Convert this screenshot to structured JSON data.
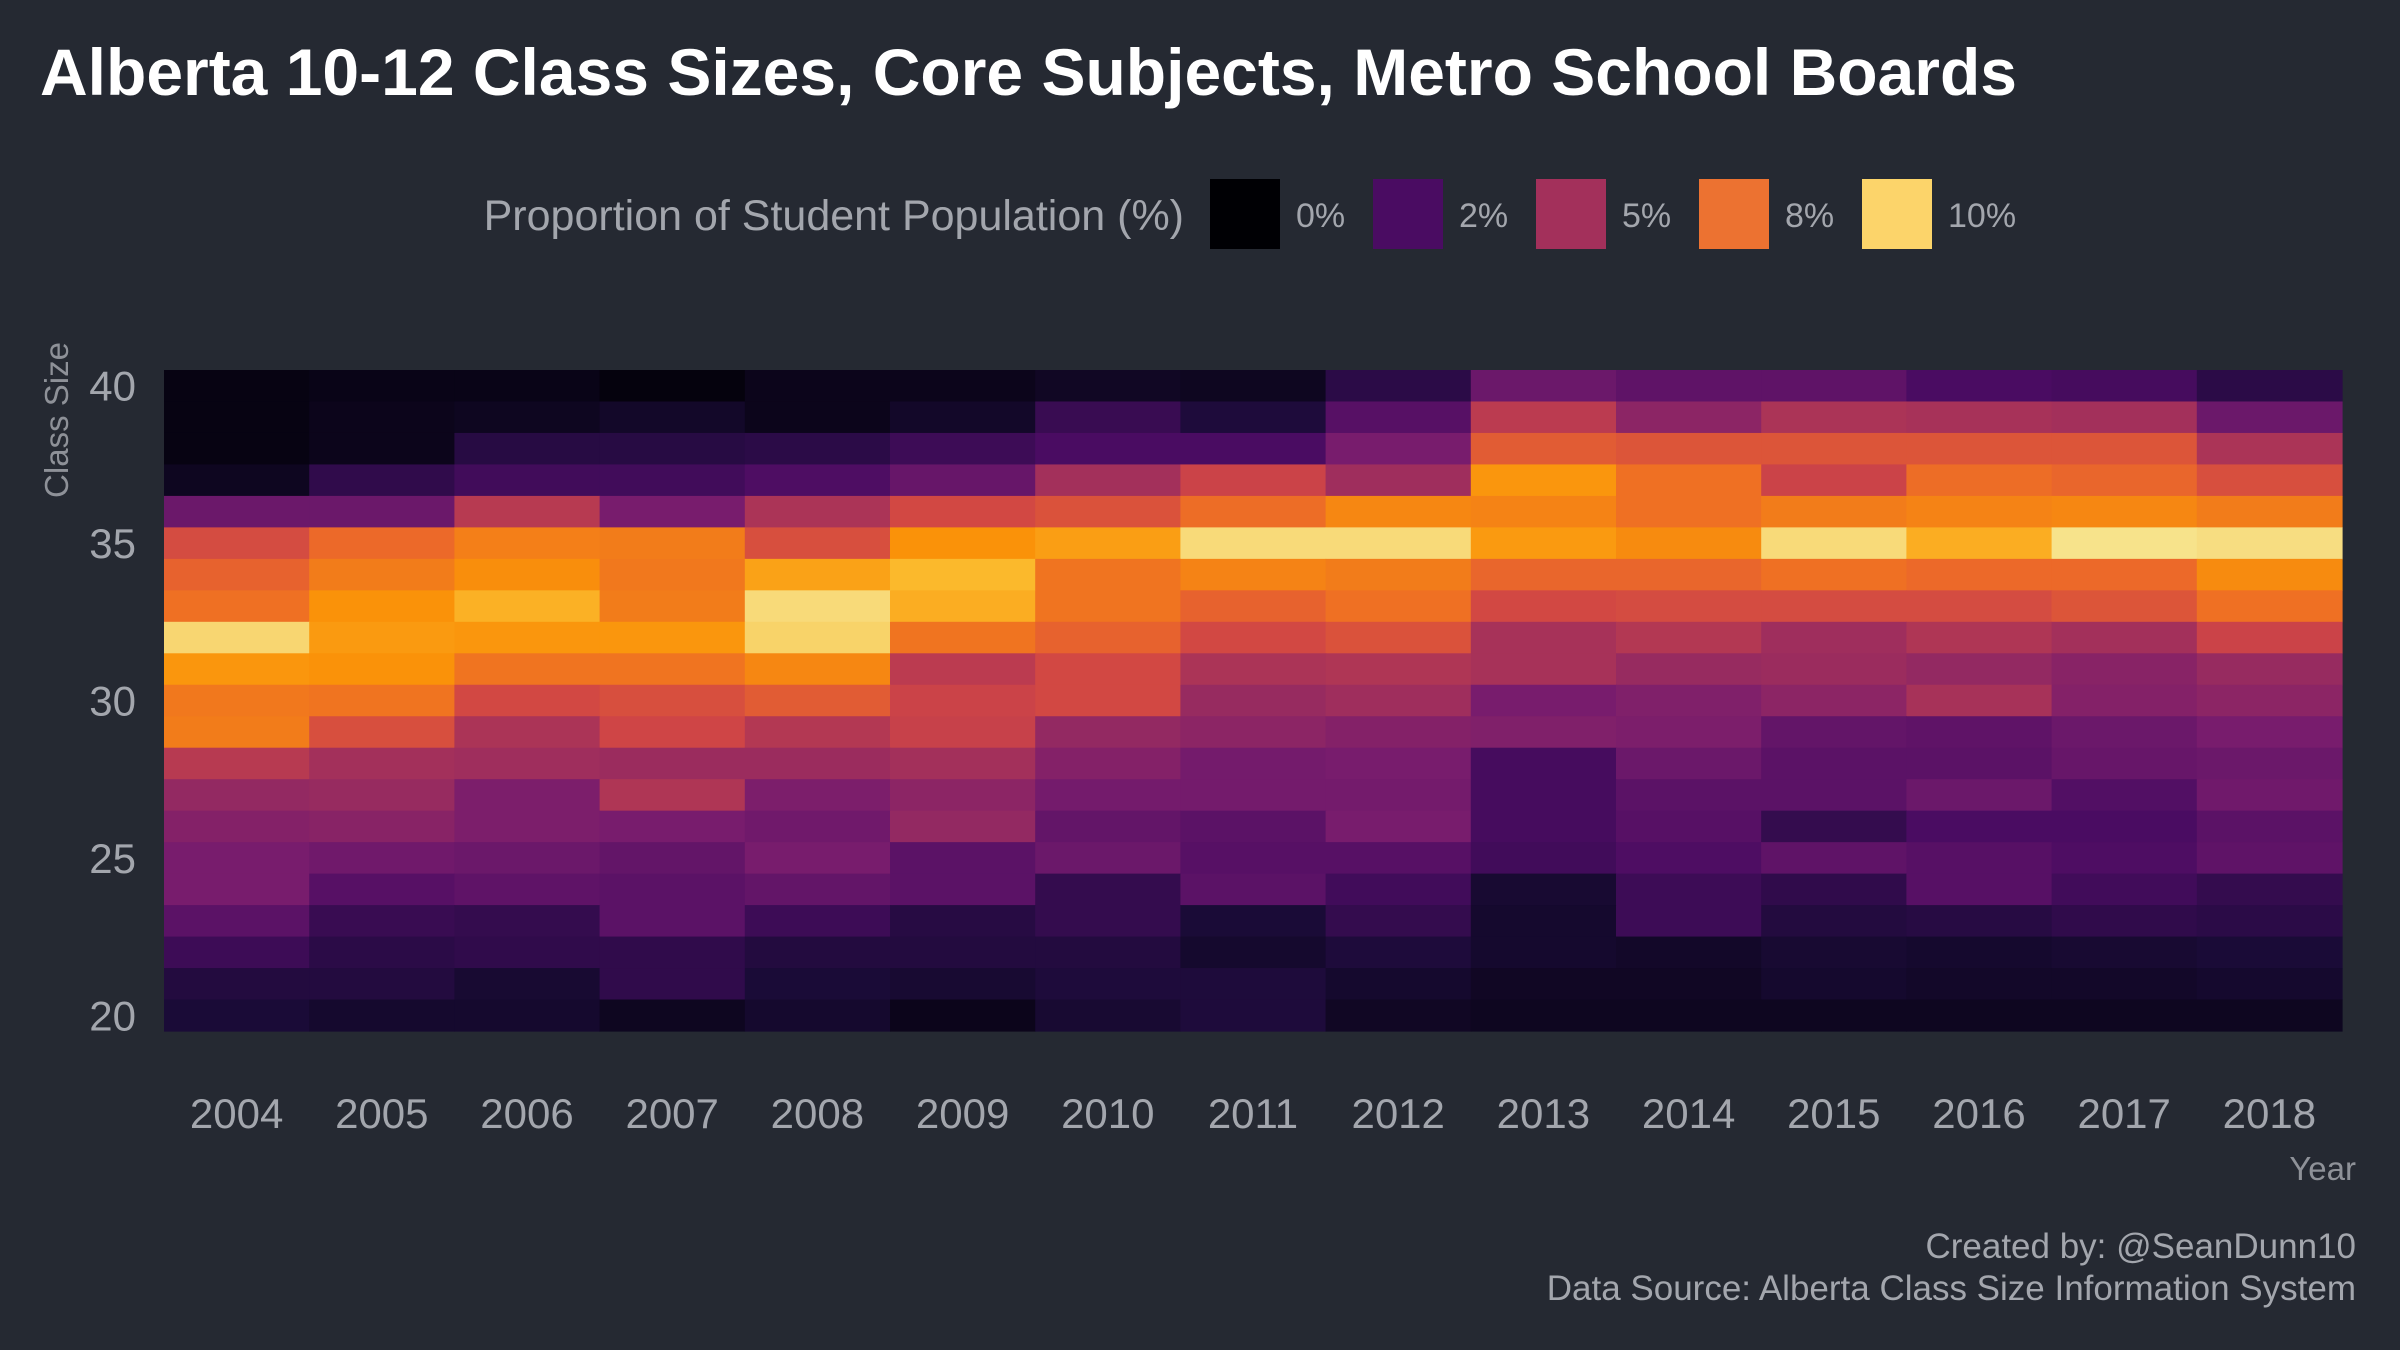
{
  "chart_data": {
    "type": "heatmap",
    "title": "Alberta 10-12 Class Sizes, Core Subjects, Metro School Boards",
    "xlabel": "Year",
    "ylabel": "Class Size",
    "x": [
      2004,
      2005,
      2006,
      2007,
      2008,
      2009,
      2010,
      2011,
      2012,
      2013,
      2014,
      2015,
      2016,
      2017,
      2018
    ],
    "xlim": [
      2003.5,
      2018.5
    ],
    "y_ticks": [
      20,
      25,
      30,
      35,
      40
    ],
    "ylim": [
      19.5,
      40.5
    ],
    "y_bins": [
      40,
      39,
      38,
      37,
      36,
      35,
      34,
      33,
      32,
      31,
      30,
      29,
      28,
      27,
      26,
      25,
      24,
      23,
      22,
      21,
      20
    ],
    "legend": {
      "title": "Proportion of Student Population (%)",
      "position": "top",
      "items": [
        {
          "label": "0%",
          "color": "#000004"
        },
        {
          "label": "2%",
          "color": "#4a0c62"
        },
        {
          "label": "5%",
          "color": "#a3305b"
        },
        {
          "label": "8%",
          "color": "#ec7231"
        },
        {
          "label": "10%",
          "color": "#fcd46a"
        }
      ]
    },
    "color_scale": {
      "name": "inferno",
      "domain": [
        0,
        11
      ],
      "stops": [
        [
          0.0,
          "#000004"
        ],
        [
          0.1,
          "#1a0b37"
        ],
        [
          0.2,
          "#4a0c62"
        ],
        [
          0.3,
          "#781c6d"
        ],
        [
          0.4,
          "#a3305b"
        ],
        [
          0.5,
          "#cf4546"
        ],
        [
          0.6,
          "#ec6929"
        ],
        [
          0.7,
          "#fa9209"
        ],
        [
          0.8,
          "#fbbd30"
        ],
        [
          0.9,
          "#f7e089"
        ],
        [
          1.0,
          "#fcffa4"
        ]
      ]
    },
    "values": [
      [
        0.3,
        0.4,
        0.4,
        0.2,
        0.5,
        0.5,
        0.7,
        0.6,
        1.5,
        3.0,
        2.7,
        2.7,
        2.2,
        2.1,
        1.5
      ],
      [
        0.3,
        0.5,
        0.6,
        0.8,
        0.5,
        0.8,
        1.8,
        1.2,
        2.5,
        5.0,
        3.8,
        4.6,
        4.5,
        4.4,
        3.0
      ],
      [
        0.3,
        0.5,
        1.4,
        1.4,
        1.5,
        1.9,
        2.2,
        2.2,
        3.3,
        6.2,
        6.0,
        6.0,
        6.0,
        6.0,
        4.6
      ],
      [
        0.6,
        1.6,
        2.0,
        2.0,
        2.3,
        2.9,
        4.4,
        5.4,
        4.3,
        7.8,
        6.8,
        5.4,
        6.7,
        6.5,
        5.8
      ],
      [
        3.0,
        3.0,
        4.9,
        3.3,
        4.6,
        5.6,
        5.9,
        6.7,
        7.4,
        7.3,
        6.8,
        7.1,
        7.3,
        7.4,
        7.1
      ],
      [
        5.7,
        6.6,
        7.2,
        7.1,
        5.8,
        7.7,
        8.0,
        9.7,
        9.7,
        7.9,
        7.5,
        9.7,
        8.4,
        10.0,
        9.8
      ],
      [
        6.4,
        7.1,
        7.6,
        7.0,
        8.1,
        8.7,
        6.9,
        7.3,
        7.1,
        6.5,
        6.5,
        6.8,
        6.6,
        6.6,
        7.5
      ],
      [
        6.8,
        7.7,
        8.5,
        7.1,
        9.7,
        8.4,
        6.9,
        6.4,
        6.8,
        5.6,
        5.7,
        5.7,
        5.7,
        6.0,
        6.8
      ],
      [
        9.6,
        7.9,
        7.8,
        7.8,
        9.5,
        6.9,
        6.4,
        5.6,
        5.9,
        4.5,
        4.8,
        4.3,
        4.7,
        4.4,
        5.4
      ],
      [
        7.8,
        7.7,
        6.9,
        6.9,
        7.4,
        5.0,
        5.6,
        4.6,
        4.7,
        4.5,
        4.1,
        4.2,
        4.0,
        3.7,
        4.1
      ],
      [
        7.0,
        6.9,
        5.6,
        5.8,
        6.2,
        5.4,
        5.6,
        4.1,
        4.3,
        3.3,
        3.5,
        3.8,
        4.5,
        3.6,
        3.8
      ],
      [
        7.1,
        5.8,
        4.6,
        5.5,
        4.8,
        5.3,
        4.0,
        3.8,
        3.6,
        3.5,
        3.4,
        2.8,
        2.7,
        3.0,
        3.3
      ],
      [
        4.9,
        4.4,
        4.3,
        4.2,
        4.2,
        4.4,
        3.6,
        3.2,
        3.3,
        2.1,
        3.0,
        2.6,
        2.6,
        2.9,
        3.0
      ],
      [
        4.0,
        4.1,
        3.4,
        4.7,
        3.4,
        3.8,
        3.2,
        3.2,
        3.2,
        2.1,
        2.6,
        2.6,
        3.0,
        2.4,
        3.1
      ],
      [
        3.6,
        3.7,
        3.4,
        3.3,
        3.1,
        4.0,
        2.8,
        2.6,
        3.3,
        2.1,
        2.5,
        1.7,
        2.2,
        2.2,
        2.6
      ],
      [
        3.3,
        3.1,
        3.0,
        2.8,
        3.3,
        2.6,
        3.0,
        2.5,
        2.5,
        2.0,
        2.3,
        2.7,
        2.5,
        2.3,
        2.7
      ],
      [
        3.3,
        2.5,
        2.7,
        2.6,
        2.8,
        2.6,
        1.7,
        2.6,
        2.0,
        1.0,
        1.9,
        1.6,
        2.5,
        2.0,
        1.7
      ],
      [
        2.6,
        1.8,
        1.7,
        2.6,
        1.9,
        1.4,
        1.7,
        1.1,
        1.7,
        0.9,
        1.9,
        1.3,
        1.4,
        1.6,
        1.5
      ],
      [
        1.9,
        1.5,
        1.6,
        1.6,
        1.3,
        1.3,
        1.3,
        0.9,
        1.2,
        0.9,
        0.8,
        1.0,
        0.9,
        1.0,
        1.1
      ],
      [
        1.3,
        1.3,
        1.0,
        1.6,
        1.1,
        1.0,
        1.2,
        1.2,
        0.9,
        0.7,
        0.7,
        0.9,
        0.8,
        0.8,
        0.9
      ],
      [
        1.1,
        0.9,
        0.9,
        0.6,
        0.9,
        0.5,
        1.0,
        1.2,
        0.7,
        0.6,
        0.6,
        0.6,
        0.6,
        0.6,
        0.6
      ]
    ]
  },
  "caption": {
    "credit": "Created by: @SeanDunn10",
    "source": "Data Source: Alberta Class Size Information System"
  }
}
